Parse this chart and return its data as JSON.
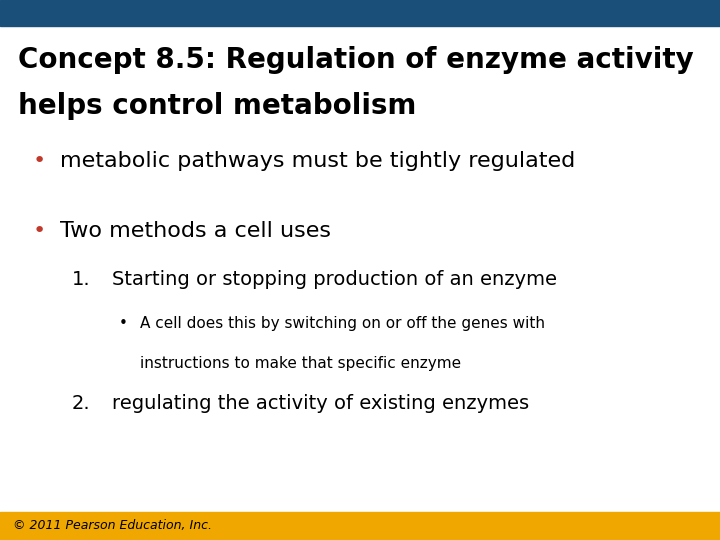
{
  "title_line1": "Concept 8.5: Regulation of enzyme activity",
  "title_line2": "helps control metabolism",
  "title_color": "#000000",
  "title_fontsize": 20,
  "bullet_color": "#C0392B",
  "bullet1": "metabolic pathways must be tightly regulated",
  "bullet1_fontsize": 16,
  "bullet2": "Two methods a cell uses",
  "bullet2_fontsize": 16,
  "numbered1": "Starting or stopping production of an enzyme",
  "numbered1_fontsize": 14,
  "subbullet1_line1": "A cell does this by switching on or off the genes with",
  "subbullet1_line2": "instructions to make that specific enzyme",
  "subbullet1_fontsize": 11,
  "numbered2": "regulating the activity of existing enzymes",
  "numbered2_fontsize": 14,
  "footer": "© 2011 Pearson Education, Inc.",
  "footer_fontsize": 9,
  "footer_color": "#000000",
  "top_bar_color": "#1A4F7A",
  "bottom_bar_color": "#F0A800",
  "background_color": "#FFFFFF"
}
